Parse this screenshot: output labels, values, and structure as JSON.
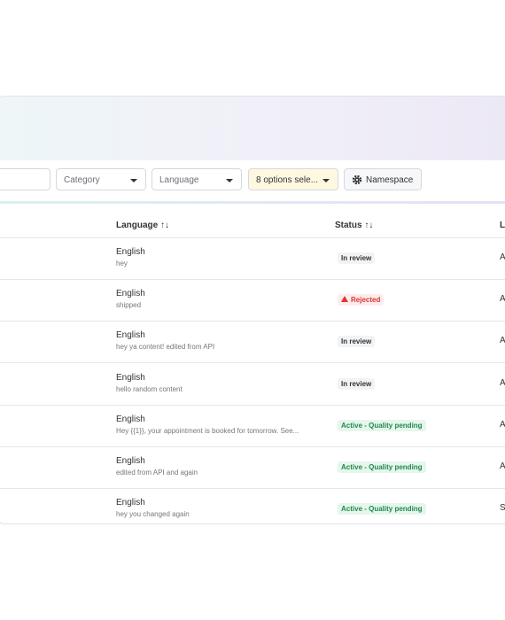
{
  "filters": {
    "category": "Category",
    "language": "Language",
    "options": "8 options sele...",
    "namespace": "Namespace"
  },
  "table": {
    "headers": [
      "Language ↑↓",
      "Status ↑↓",
      "La"
    ],
    "rows": [
      {
        "language": "English",
        "content": "hey",
        "status": "In review",
        "tone": "neutral",
        "last": "Ac"
      },
      {
        "language": "English",
        "content": "shipped",
        "status": "Rejected",
        "tone": "danger",
        "last": "Ac"
      },
      {
        "language": "English",
        "content": "hey ya content! edited from API",
        "status": "In review",
        "tone": "neutral",
        "last": "Ac"
      },
      {
        "language": "English",
        "content": "hello random content",
        "status": "In review",
        "tone": "neutral",
        "last": "Ac"
      },
      {
        "language": "English",
        "content": "Hey {{1}}, your appointment is booked for tomorrow. See...",
        "status": "Active - Quality pending",
        "tone": "success",
        "last": "A"
      },
      {
        "language": "English",
        "content": "edited from API and again",
        "status": "Active - Quality pending",
        "tone": "success",
        "last": "Ac"
      },
      {
        "language": "English",
        "content": "hey you changed again",
        "status": "Active - Quality pending",
        "tone": "success",
        "last": "Se"
      }
    ]
  }
}
